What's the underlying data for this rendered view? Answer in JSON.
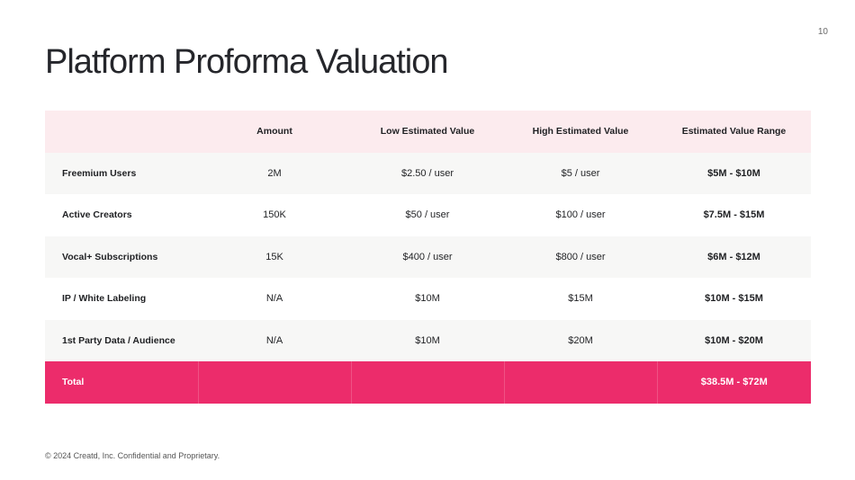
{
  "page_number": "10",
  "title": "Platform Proforma Valuation",
  "table": {
    "headers": [
      "",
      "Amount",
      "Low Estimated Value",
      "High Estimated Value",
      "Estimated Value Range"
    ],
    "rows": [
      [
        "Freemium Users",
        "2M",
        "$2.50 / user",
        "$5 / user",
        "$5M - $10M"
      ],
      [
        "Active Creators",
        "150K",
        "$50 / user",
        "$100 / user",
        "$7.5M - $15M"
      ],
      [
        "Vocal+ Subscriptions",
        "15K",
        "$400 / user",
        "$800 / user",
        "$6M - $12M"
      ],
      [
        "IP / White Labeling",
        "N/A",
        "$10M",
        "$15M",
        "$10M - $15M"
      ],
      [
        "1st Party Data / Audience",
        "N/A",
        "$10M",
        "$20M",
        "$10M - $20M"
      ]
    ],
    "total": [
      "Total",
      "",
      "",
      "",
      "$38.5M - $72M"
    ]
  },
  "footer": "© 2024 Creatd, Inc. Confidential and Proprietary.",
  "colors": {
    "accent": "#ec2c6b",
    "header_bg": "#fcebee",
    "stripe_bg": "#f7f7f6"
  }
}
